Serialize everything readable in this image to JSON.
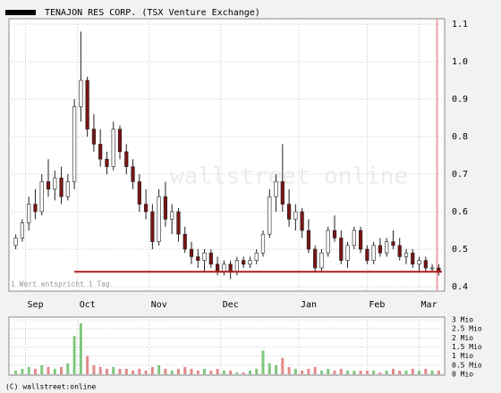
{
  "chart_data": [
    {
      "type": "candlestick",
      "series_name": "TENAJON RES CORP. (TSX Venture Exchange)",
      "legend_color": "#000000",
      "up_color": "#ffffff",
      "down_color": "#7a1414",
      "edge_color": "#222222",
      "annotation": "1 Wert entspricht 1 Tag",
      "watermark": "wallstreet online",
      "footer": "(C) wallstreet:online",
      "x": [
        0,
        2,
        4,
        6,
        8,
        10,
        12,
        14,
        16,
        18,
        20,
        22,
        24,
        26,
        28,
        30,
        32,
        34,
        36,
        38,
        40,
        42,
        44,
        46,
        48,
        50,
        52,
        54,
        56,
        58,
        60,
        62,
        64,
        66,
        68,
        70,
        72,
        74,
        76,
        78,
        80,
        82,
        84,
        86,
        88,
        90,
        92,
        94,
        96,
        98,
        100,
        102,
        104,
        106,
        108,
        110,
        112,
        114,
        116,
        118,
        120,
        122,
        124,
        126,
        128,
        130
      ],
      "open": [
        0.51,
        0.53,
        0.57,
        0.62,
        0.6,
        0.68,
        0.66,
        0.69,
        0.64,
        0.68,
        0.88,
        0.95,
        0.82,
        0.78,
        0.74,
        0.72,
        0.82,
        0.76,
        0.72,
        0.68,
        0.62,
        0.6,
        0.52,
        0.64,
        0.58,
        0.6,
        0.54,
        0.5,
        0.48,
        0.47,
        0.49,
        0.46,
        0.44,
        0.46,
        0.44,
        0.47,
        0.46,
        0.47,
        0.49,
        0.54,
        0.64,
        0.68,
        0.62,
        0.58,
        0.6,
        0.55,
        0.5,
        0.45,
        0.49,
        0.55,
        0.53,
        0.47,
        0.51,
        0.55,
        0.5,
        0.47,
        0.51,
        0.49,
        0.52,
        0.51,
        0.48,
        0.49,
        0.46,
        0.47,
        0.45,
        0.45
      ],
      "high": [
        0.54,
        0.58,
        0.64,
        0.66,
        0.7,
        0.74,
        0.71,
        0.72,
        0.7,
        0.9,
        1.08,
        0.96,
        0.86,
        0.82,
        0.76,
        0.84,
        0.83,
        0.78,
        0.74,
        0.7,
        0.66,
        0.62,
        0.66,
        0.68,
        0.62,
        0.61,
        0.56,
        0.52,
        0.5,
        0.5,
        0.5,
        0.48,
        0.47,
        0.47,
        0.48,
        0.48,
        0.48,
        0.5,
        0.55,
        0.66,
        0.7,
        0.78,
        0.66,
        0.62,
        0.61,
        0.58,
        0.51,
        0.5,
        0.56,
        0.59,
        0.55,
        0.52,
        0.56,
        0.56,
        0.51,
        0.52,
        0.53,
        0.53,
        0.55,
        0.53,
        0.5,
        0.5,
        0.48,
        0.48,
        0.46,
        0.46
      ],
      "low": [
        0.5,
        0.52,
        0.55,
        0.58,
        0.59,
        0.64,
        0.63,
        0.62,
        0.63,
        0.66,
        0.84,
        0.8,
        0.76,
        0.72,
        0.7,
        0.71,
        0.74,
        0.7,
        0.66,
        0.6,
        0.58,
        0.5,
        0.51,
        0.56,
        0.54,
        0.52,
        0.49,
        0.46,
        0.45,
        0.44,
        0.45,
        0.43,
        0.43,
        0.42,
        0.43,
        0.45,
        0.45,
        0.46,
        0.48,
        0.53,
        0.6,
        0.6,
        0.56,
        0.55,
        0.53,
        0.49,
        0.44,
        0.44,
        0.48,
        0.52,
        0.46,
        0.45,
        0.5,
        0.49,
        0.46,
        0.46,
        0.48,
        0.48,
        0.5,
        0.47,
        0.46,
        0.45,
        0.44,
        0.44,
        0.44,
        0.43
      ],
      "close": [
        0.53,
        0.57,
        0.62,
        0.6,
        0.68,
        0.66,
        0.69,
        0.64,
        0.68,
        0.88,
        0.95,
        0.82,
        0.78,
        0.74,
        0.72,
        0.82,
        0.76,
        0.72,
        0.68,
        0.62,
        0.6,
        0.52,
        0.64,
        0.58,
        0.6,
        0.54,
        0.5,
        0.48,
        0.47,
        0.49,
        0.46,
        0.44,
        0.46,
        0.44,
        0.47,
        0.46,
        0.47,
        0.49,
        0.54,
        0.64,
        0.68,
        0.62,
        0.58,
        0.6,
        0.55,
        0.5,
        0.45,
        0.49,
        0.55,
        0.53,
        0.47,
        0.51,
        0.55,
        0.5,
        0.47,
        0.51,
        0.49,
        0.52,
        0.51,
        0.48,
        0.49,
        0.46,
        0.47,
        0.45,
        0.45,
        0.44
      ],
      "xlim": [
        -1,
        131
      ],
      "xticks": [
        {
          "value": 3,
          "label": "Sep"
        },
        {
          "value": 19,
          "label": "Oct"
        },
        {
          "value": 41,
          "label": "Nov"
        },
        {
          "value": 63,
          "label": "Dec"
        },
        {
          "value": 87,
          "label": "Jan"
        },
        {
          "value": 108,
          "label": "Feb"
        },
        {
          "value": 124,
          "label": "Mar"
        }
      ],
      "ylim": [
        0.4,
        1.1
      ],
      "yticks": [
        0.4,
        0.5,
        0.6,
        0.7,
        0.8,
        0.9,
        {
          "value": 1,
          "label": "1.0"
        },
        1.1
      ],
      "hline": {
        "y": 0.44,
        "x": [
          18,
          131
        ],
        "color": "#b01c1c"
      },
      "marker_line": {
        "x": 129.5,
        "color": "#f0a0a8"
      },
      "grid": true
    },
    {
      "type": "bar",
      "x": [
        0,
        2,
        4,
        6,
        8,
        10,
        12,
        14,
        16,
        18,
        20,
        22,
        24,
        26,
        28,
        30,
        32,
        34,
        36,
        38,
        40,
        42,
        44,
        46,
        48,
        50,
        52,
        54,
        56,
        58,
        60,
        62,
        64,
        66,
        68,
        70,
        72,
        74,
        76,
        78,
        80,
        82,
        84,
        86,
        88,
        90,
        92,
        94,
        96,
        98,
        100,
        102,
        104,
        106,
        108,
        110,
        112,
        114,
        116,
        118,
        120,
        122,
        124,
        126,
        128,
        130
      ],
      "values": [
        0.2,
        0.3,
        0.4,
        0.3,
        0.5,
        0.4,
        0.3,
        0.4,
        0.6,
        2.1,
        2.8,
        1.0,
        0.5,
        0.4,
        0.3,
        0.4,
        0.3,
        0.3,
        0.2,
        0.3,
        0.2,
        0.4,
        0.5,
        0.3,
        0.2,
        0.3,
        0.4,
        0.3,
        0.2,
        0.3,
        0.2,
        0.3,
        0.2,
        0.2,
        0.1,
        0.1,
        0.2,
        0.3,
        1.3,
        0.6,
        0.5,
        0.9,
        0.4,
        0.3,
        0.2,
        0.3,
        0.4,
        0.2,
        0.3,
        0.2,
        0.3,
        0.2,
        0.2,
        0.2,
        0.2,
        0.2,
        0.1,
        0.2,
        0.3,
        0.2,
        0.2,
        0.3,
        0.2,
        0.3,
        0.2,
        0.2
      ],
      "up_color": "#7fc77f",
      "down_color": "#e08a8a",
      "xlim": [
        -1,
        131
      ],
      "ylim": [
        0,
        3
      ],
      "yticks": [
        {
          "value": 0,
          "label": "0 Mio"
        },
        {
          "value": 0.5,
          "label": "0.5 Mio"
        },
        {
          "value": 1,
          "label": "1 Mio"
        },
        {
          "value": 1.5,
          "label": "1.5 Mio"
        },
        {
          "value": 2,
          "label": "2 Mio"
        },
        {
          "value": 2.5,
          "label": "2.5 Mio"
        },
        {
          "value": 3,
          "label": "3 Mio"
        }
      ],
      "grid": true
    }
  ]
}
